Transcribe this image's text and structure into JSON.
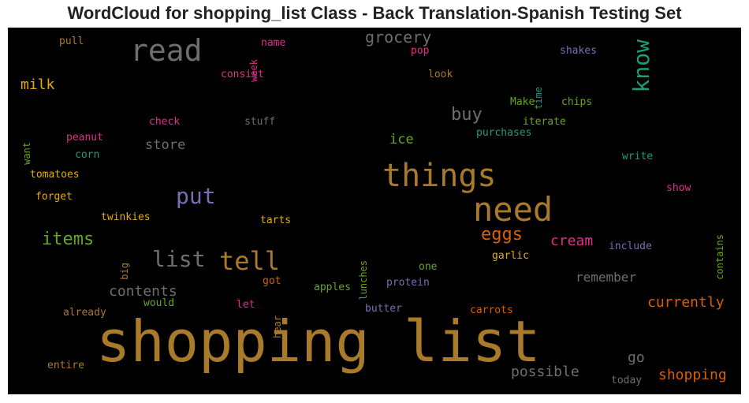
{
  "chart_data": {
    "type": "wordcloud",
    "title": "WordCloud for shopping_list Class - Back Translation-Spanish Testing Set",
    "background": "#000000",
    "palette": {
      "gold": "#a87a2a",
      "gray": "#6e6e6e",
      "teal": "#1b9e77",
      "purple": "#7570b3",
      "magenta": "#e7298a",
      "green": "#66a61e",
      "orange": "#d95f02",
      "yellow": "#e6ab02"
    },
    "words": [
      {
        "text": "shopping list",
        "weight": 1.0,
        "color": "#a87a2a",
        "vertical": false
      },
      {
        "text": "need",
        "weight": 0.55,
        "color": "#a87a2a",
        "vertical": false
      },
      {
        "text": "things",
        "weight": 0.52,
        "color": "#a87a2a",
        "vertical": false
      },
      {
        "text": "read",
        "weight": 0.5,
        "color": "#6e6e6e",
        "vertical": false
      },
      {
        "text": "tell",
        "weight": 0.4,
        "color": "#a87a2a",
        "vertical": false
      },
      {
        "text": "list",
        "weight": 0.38,
        "color": "#6e6e6e",
        "vertical": false
      },
      {
        "text": "put",
        "weight": 0.38,
        "color": "#7570b3",
        "vertical": false
      },
      {
        "text": "know",
        "weight": 0.38,
        "color": "#1b9e77",
        "vertical": true
      },
      {
        "text": "items",
        "weight": 0.3,
        "color": "#66a61e",
        "vertical": false
      },
      {
        "text": "grocery",
        "weight": 0.3,
        "color": "#6e6e6e",
        "vertical": false
      },
      {
        "text": "eggs",
        "weight": 0.28,
        "color": "#d95f02",
        "vertical": false
      },
      {
        "text": "buy",
        "weight": 0.28,
        "color": "#6e6e6e",
        "vertical": false
      },
      {
        "text": "cream",
        "weight": 0.24,
        "color": "#e7298a",
        "vertical": false
      },
      {
        "text": "milk",
        "weight": 0.24,
        "color": "#e6ab02",
        "vertical": false
      },
      {
        "text": "contents",
        "weight": 0.24,
        "color": "#6e6e6e",
        "vertical": false
      },
      {
        "text": "currently",
        "weight": 0.24,
        "color": "#d95f02",
        "vertical": false
      },
      {
        "text": "possible",
        "weight": 0.24,
        "color": "#6e6e6e",
        "vertical": false
      },
      {
        "text": "shopping",
        "weight": 0.24,
        "color": "#d95f02",
        "vertical": false
      },
      {
        "text": "go",
        "weight": 0.24,
        "color": "#6e6e6e",
        "vertical": false
      },
      {
        "text": "remember",
        "weight": 0.22,
        "color": "#6e6e6e",
        "vertical": false
      },
      {
        "text": "store",
        "weight": 0.22,
        "color": "#6e6e6e",
        "vertical": false
      },
      {
        "text": "ice",
        "weight": 0.22,
        "color": "#66a61e",
        "vertical": false
      },
      {
        "text": "stuff",
        "weight": 0.18,
        "color": "#6e6e6e",
        "vertical": false
      },
      {
        "text": "check",
        "weight": 0.18,
        "color": "#e7298a",
        "vertical": false
      },
      {
        "text": "peanut",
        "weight": 0.18,
        "color": "#e7298a",
        "vertical": false
      },
      {
        "text": "corn",
        "weight": 0.18,
        "color": "#1b9e77",
        "vertical": false
      },
      {
        "text": "tomatoes",
        "weight": 0.18,
        "color": "#e6ab02",
        "vertical": false
      },
      {
        "text": "forget",
        "weight": 0.18,
        "color": "#e6ab02",
        "vertical": false
      },
      {
        "text": "twinkies",
        "weight": 0.18,
        "color": "#e6ab02",
        "vertical": false
      },
      {
        "text": "tarts",
        "weight": 0.18,
        "color": "#e6ab02",
        "vertical": false
      },
      {
        "text": "garlic",
        "weight": 0.18,
        "color": "#e6ab02",
        "vertical": false
      },
      {
        "text": "one",
        "weight": 0.18,
        "color": "#66a61e",
        "vertical": false
      },
      {
        "text": "protein",
        "weight": 0.18,
        "color": "#7570b3",
        "vertical": false
      },
      {
        "text": "apples",
        "weight": 0.18,
        "color": "#66a61e",
        "vertical": false
      },
      {
        "text": "got",
        "weight": 0.18,
        "color": "#d95f02",
        "vertical": false
      },
      {
        "text": "would",
        "weight": 0.18,
        "color": "#66a61e",
        "vertical": false
      },
      {
        "text": "let",
        "weight": 0.18,
        "color": "#e7298a",
        "vertical": false
      },
      {
        "text": "already",
        "weight": 0.18,
        "color": "#a87a2a",
        "vertical": false
      },
      {
        "text": "butter",
        "weight": 0.18,
        "color": "#7570b3",
        "vertical": false
      },
      {
        "text": "carrots",
        "weight": 0.18,
        "color": "#d95f02",
        "vertical": false
      },
      {
        "text": "entire",
        "weight": 0.18,
        "color": "#a87a2a",
        "vertical": false
      },
      {
        "text": "today",
        "weight": 0.16,
        "color": "#6e6e6e",
        "vertical": false
      },
      {
        "text": "include",
        "weight": 0.18,
        "color": "#7570b3",
        "vertical": false
      },
      {
        "text": "show",
        "weight": 0.18,
        "color": "#e7298a",
        "vertical": false
      },
      {
        "text": "write",
        "weight": 0.18,
        "color": "#1b9e77",
        "vertical": false
      },
      {
        "text": "purchases",
        "weight": 0.18,
        "color": "#1b9e77",
        "vertical": false
      },
      {
        "text": "iterate",
        "weight": 0.18,
        "color": "#66a61e",
        "vertical": false
      },
      {
        "text": "Make",
        "weight": 0.18,
        "color": "#66a61e",
        "vertical": false
      },
      {
        "text": "chips",
        "weight": 0.18,
        "color": "#66a61e",
        "vertical": false
      },
      {
        "text": "look",
        "weight": 0.18,
        "color": "#a87a2a",
        "vertical": false
      },
      {
        "text": "shakes",
        "weight": 0.18,
        "color": "#7570b3",
        "vertical": false
      },
      {
        "text": "pop",
        "weight": 0.18,
        "color": "#e7298a",
        "vertical": false
      },
      {
        "text": "name",
        "weight": 0.18,
        "color": "#e7298a",
        "vertical": false
      },
      {
        "text": "consist",
        "weight": 0.18,
        "color": "#e7298a",
        "vertical": false
      },
      {
        "text": "pull",
        "weight": 0.18,
        "color": "#a87a2a",
        "vertical": false
      },
      {
        "text": "week",
        "weight": 0.16,
        "color": "#e7298a",
        "vertical": true
      },
      {
        "text": "time",
        "weight": 0.16,
        "color": "#1b9e77",
        "vertical": true
      },
      {
        "text": "want",
        "weight": 0.16,
        "color": "#66a61e",
        "vertical": true
      },
      {
        "text": "big",
        "weight": 0.16,
        "color": "#a87a2a",
        "vertical": true
      },
      {
        "text": "lunches",
        "weight": 0.16,
        "color": "#66a61e",
        "vertical": true
      },
      {
        "text": "hear",
        "weight": 0.16,
        "color": "#a87a2a",
        "vertical": true
      },
      {
        "text": "contains",
        "weight": 0.16,
        "color": "#66a61e",
        "vertical": true
      }
    ]
  }
}
